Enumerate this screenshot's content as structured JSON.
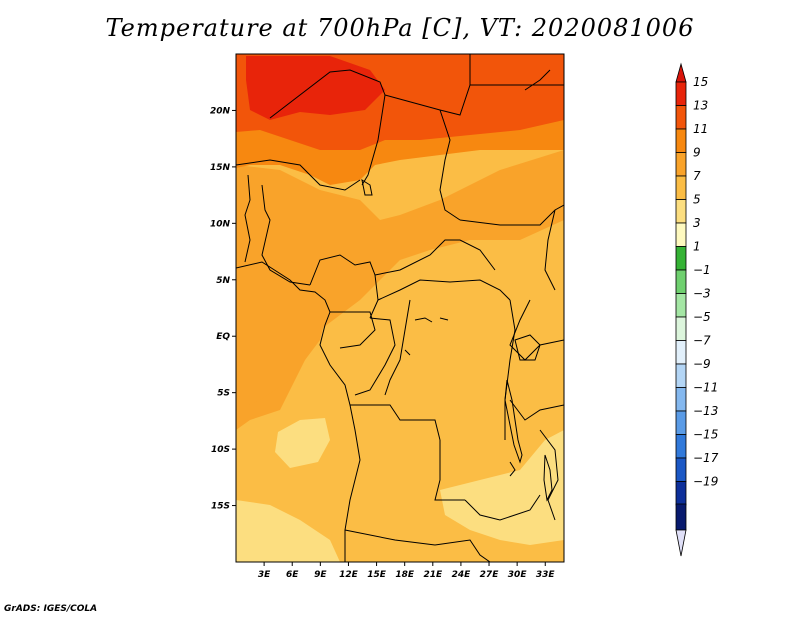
{
  "title": "Temperature at 700hPa [C], VT: 2020081006",
  "credit": "GrADS: IGES/COLA",
  "map": {
    "region_extent": {
      "lon_min": 0,
      "lon_max": 35,
      "lat_min": -20,
      "lat_max": 25
    },
    "lat_ticks": [
      {
        "value": 20,
        "label": "20N"
      },
      {
        "value": 15,
        "label": "15N"
      },
      {
        "value": 10,
        "label": "10N"
      },
      {
        "value": 5,
        "label": "5N"
      },
      {
        "value": 0,
        "label": "EQ"
      },
      {
        "value": -5,
        "label": "5S"
      },
      {
        "value": -10,
        "label": "10S"
      },
      {
        "value": -15,
        "label": "15S"
      }
    ],
    "lon_ticks": [
      {
        "value": 3,
        "label": "3E"
      },
      {
        "value": 6,
        "label": "6E"
      },
      {
        "value": 9,
        "label": "9E"
      },
      {
        "value": 12,
        "label": "12E"
      },
      {
        "value": 15,
        "label": "15E"
      },
      {
        "value": 18,
        "label": "18E"
      },
      {
        "value": 21,
        "label": "21E"
      },
      {
        "value": 24,
        "label": "24E"
      },
      {
        "value": 27,
        "label": "27E"
      },
      {
        "value": 30,
        "label": "30E"
      },
      {
        "value": 33,
        "label": "33E"
      }
    ],
    "colors": {
      "t15": "#e8240a",
      "t13": "#f2550a",
      "t11": "#f78810",
      "t9": "#f9a32a",
      "t7": "#fbbd45",
      "t5": "#fcde80",
      "border": "#000000"
    }
  },
  "legend": {
    "top_arrow_color": "#d9140a",
    "bottom_arrow_color": "#e0e0f8",
    "bins": [
      {
        "label": "15",
        "color": "#e8240a"
      },
      {
        "label": "13",
        "color": "#f2550a"
      },
      {
        "label": "11",
        "color": "#f78810"
      },
      {
        "label": "9",
        "color": "#f9a32a"
      },
      {
        "label": "7",
        "color": "#fbbd45"
      },
      {
        "label": "5",
        "color": "#fcde80"
      },
      {
        "label": "3",
        "color": "#fef9bf"
      },
      {
        "label": "1",
        "color": "#35b235"
      },
      {
        "label": "−1",
        "color": "#6fd06f"
      },
      {
        "label": "−3",
        "color": "#a4e6a4"
      },
      {
        "label": "−5",
        "color": "#dcf5dc"
      },
      {
        "label": "−7",
        "color": "#e2f0fb"
      },
      {
        "label": "−9",
        "color": "#b3d5f5"
      },
      {
        "label": "−11",
        "color": "#84b8ef"
      },
      {
        "label": "−13",
        "color": "#5a9be6"
      },
      {
        "label": "−15",
        "color": "#3179da"
      },
      {
        "label": "−17",
        "color": "#1b58c5"
      },
      {
        "label": "−19",
        "color": "#0d2f9a"
      }
    ],
    "below_color": "#081a6e"
  }
}
